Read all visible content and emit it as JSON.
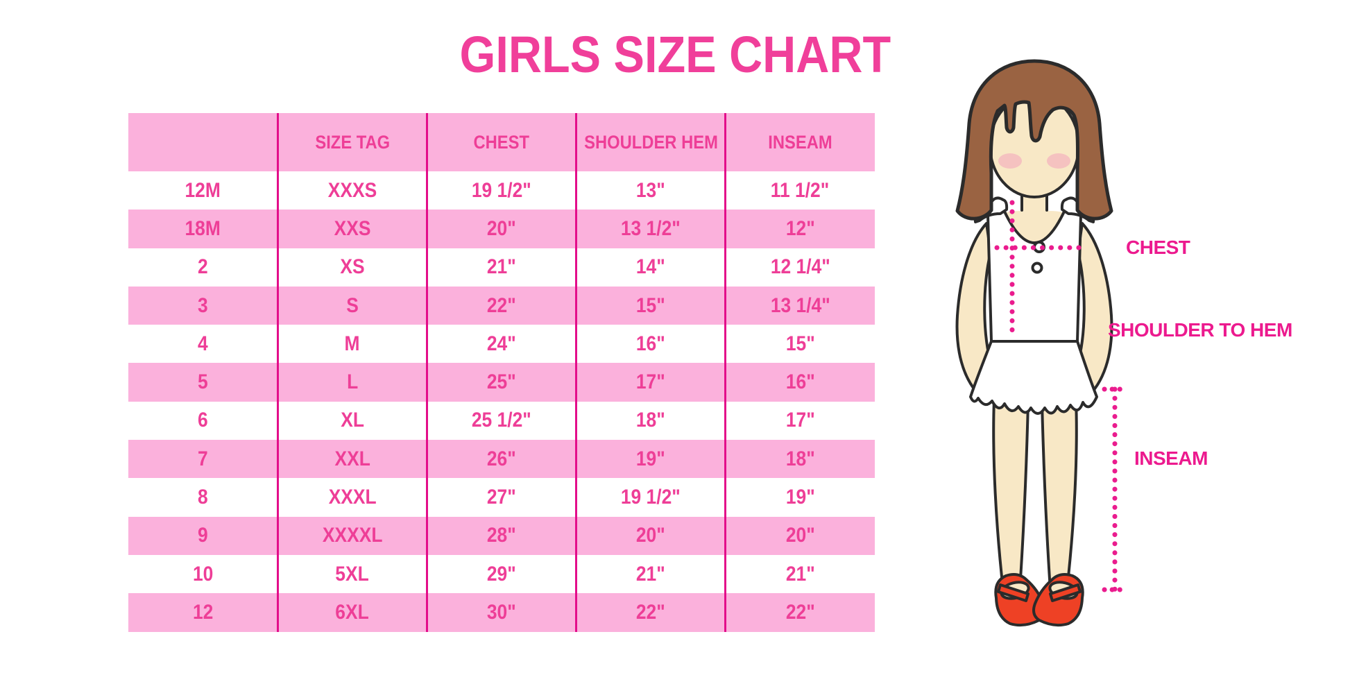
{
  "page": {
    "title": "GIRLS SIZE CHART"
  },
  "chart_data": {
    "type": "table",
    "title": "GIRLS SIZE CHART",
    "columns": [
      "",
      "SIZE TAG",
      "CHEST",
      "SHOULDER HEM",
      "INSEAM"
    ],
    "rows": [
      [
        "12M",
        "XXXS",
        "19 1/2\"",
        "13\"",
        "11 1/2\""
      ],
      [
        "18M",
        "XXS",
        "20\"",
        "13 1/2\"",
        "12\""
      ],
      [
        "2",
        "XS",
        "21\"",
        "14\"",
        "12 1/4\""
      ],
      [
        "3",
        "S",
        "22\"",
        "15\"",
        "13 1/4\""
      ],
      [
        "4",
        "M",
        "24\"",
        "16\"",
        "15\""
      ],
      [
        "5",
        "L",
        "25\"",
        "17\"",
        "16\""
      ],
      [
        "6",
        "XL",
        "25 1/2\"",
        "18\"",
        "17\""
      ],
      [
        "7",
        "XXL",
        "26\"",
        "19\"",
        "18\""
      ],
      [
        "8",
        "XXXL",
        "27\"",
        "19 1/2\"",
        "19\""
      ],
      [
        "9",
        "XXXXL",
        "28\"",
        "20\"",
        "20\""
      ],
      [
        "10",
        "5XL",
        "29\"",
        "21\"",
        "21\""
      ],
      [
        "12",
        "6XL",
        "30\"",
        "22\"",
        "22\""
      ]
    ],
    "layout": {
      "grid": "vertical magenta column dividers only, no horizontal lines",
      "row_stripe": "header pink, then data rows alternate white/pink starting white",
      "legend_position": "none"
    }
  },
  "diagram": {
    "figure": "girl illustration with measurement guides",
    "labels": {
      "chest": "CHEST",
      "shoulder_to_hem": "SHOULDER TO HEM",
      "inseam": "INSEAM"
    }
  },
  "colors": {
    "row_pink": "#FBB1DC",
    "text_pink": "#EE3E97",
    "divider_pink": "#E30D8A",
    "title_pink": "#F03F9A",
    "label_pink": "#EC1A8E",
    "dotted_line_pink": "#EA1C8E",
    "hair_brown": "#9A6342",
    "skin": "#F8E8C6",
    "blush": "#F3A9BD",
    "shoe_red": "#EE4125",
    "outline": "#2B2B2B",
    "background": "#FFFFFF"
  }
}
